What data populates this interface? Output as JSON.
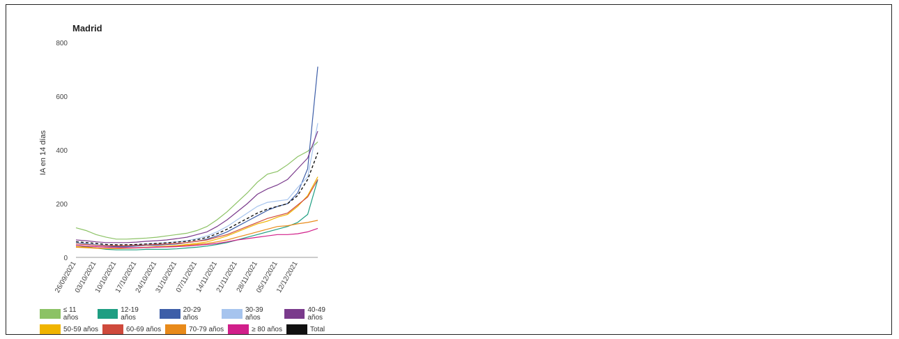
{
  "chart_data": {
    "type": "line",
    "title": "Madrid",
    "xlabel": "",
    "ylabel": "IA en 14 días",
    "ylim": [
      0,
      800
    ],
    "yticks": [
      0,
      200,
      400,
      600,
      800
    ],
    "x": [
      "26/09/2021",
      "29/09/2021",
      "03/10/2021",
      "06/10/2021",
      "10/10/2021",
      "13/10/2021",
      "17/10/2021",
      "20/10/2021",
      "24/10/2021",
      "27/10/2021",
      "31/10/2021",
      "03/11/2021",
      "07/11/2021",
      "10/11/2021",
      "14/11/2021",
      "17/11/2021",
      "21/11/2021",
      "24/11/2021",
      "28/11/2021",
      "01/12/2021",
      "05/12/2021",
      "08/12/2021",
      "12/12/2021",
      "14/12/2021",
      "16/12/2021"
    ],
    "xtick_labels": [
      "26/09/2021",
      "03/10/2021",
      "10/10/2021",
      "17/10/2021",
      "24/10/2021",
      "31/10/2021",
      "07/11/2021",
      "14/11/2021",
      "21/11/2021",
      "28/11/2021",
      "05/12/2021",
      "12/12/2021"
    ],
    "grid": false,
    "legend_position": "bottom",
    "series": [
      {
        "name": "≤ 11 años",
        "color": "#8cc265",
        "dash": false,
        "values": [
          110,
          100,
          85,
          75,
          68,
          68,
          70,
          72,
          75,
          80,
          85,
          90,
          100,
          115,
          140,
          170,
          205,
          240,
          280,
          310,
          320,
          345,
          375,
          395,
          430
        ]
      },
      {
        "name": "12-19 años",
        "color": "#1e9e82",
        "dash": false,
        "values": [
          45,
          40,
          35,
          30,
          28,
          28,
          28,
          30,
          30,
          30,
          32,
          35,
          38,
          42,
          48,
          55,
          65,
          75,
          85,
          95,
          105,
          115,
          130,
          160,
          290
        ]
      },
      {
        "name": "20-29 años",
        "color": "#3d5ea8",
        "dash": false,
        "values": [
          55,
          50,
          45,
          42,
          40,
          40,
          42,
          45,
          45,
          48,
          50,
          55,
          60,
          68,
          80,
          95,
          115,
          135,
          155,
          175,
          190,
          200,
          240,
          330,
          710
        ]
      },
      {
        "name": "30-39 años",
        "color": "#a6c4ee",
        "dash": false,
        "values": [
          55,
          52,
          48,
          45,
          44,
          45,
          47,
          50,
          52,
          55,
          58,
          62,
          70,
          80,
          95,
          115,
          140,
          165,
          190,
          205,
          210,
          215,
          260,
          300,
          500
        ]
      },
      {
        "name": "40-49 años",
        "color": "#7a3a8c",
        "dash": false,
        "values": [
          65,
          62,
          58,
          55,
          55,
          55,
          57,
          60,
          62,
          65,
          70,
          75,
          85,
          95,
          115,
          140,
          170,
          200,
          235,
          255,
          270,
          290,
          330,
          370,
          470
        ]
      },
      {
        "name": "50-59 años",
        "color": "#f0b400",
        "dash": false,
        "values": [
          40,
          38,
          35,
          33,
          33,
          34,
          36,
          38,
          40,
          42,
          44,
          48,
          52,
          58,
          68,
          80,
          95,
          110,
          125,
          135,
          150,
          160,
          190,
          230,
          300
        ]
      },
      {
        "name": "60-69 años",
        "color": "#cf4a3c",
        "dash": false,
        "values": [
          50,
          48,
          45,
          43,
          43,
          44,
          45,
          46,
          48,
          50,
          52,
          55,
          60,
          65,
          75,
          85,
          100,
          115,
          130,
          145,
          155,
          165,
          195,
          225,
          290
        ]
      },
      {
        "name": "70-79 años",
        "color": "#e88a1a",
        "dash": false,
        "values": [
          38,
          36,
          34,
          33,
          33,
          34,
          35,
          37,
          39,
          40,
          42,
          45,
          48,
          52,
          58,
          65,
          75,
          85,
          95,
          105,
          115,
          118,
          125,
          130,
          138
        ]
      },
      {
        "name": "≥ 80 años",
        "color": "#d11f8a",
        "dash": false,
        "values": [
          45,
          42,
          40,
          38,
          37,
          36,
          36,
          37,
          38,
          39,
          40,
          42,
          45,
          48,
          52,
          58,
          65,
          70,
          75,
          80,
          85,
          85,
          88,
          95,
          108
        ]
      },
      {
        "name": "Total",
        "color": "#111111",
        "dash": true,
        "values": [
          58,
          55,
          52,
          48,
          47,
          47,
          48,
          50,
          52,
          54,
          57,
          60,
          66,
          74,
          88,
          105,
          125,
          145,
          165,
          180,
          190,
          200,
          230,
          290,
          390
        ]
      }
    ]
  }
}
